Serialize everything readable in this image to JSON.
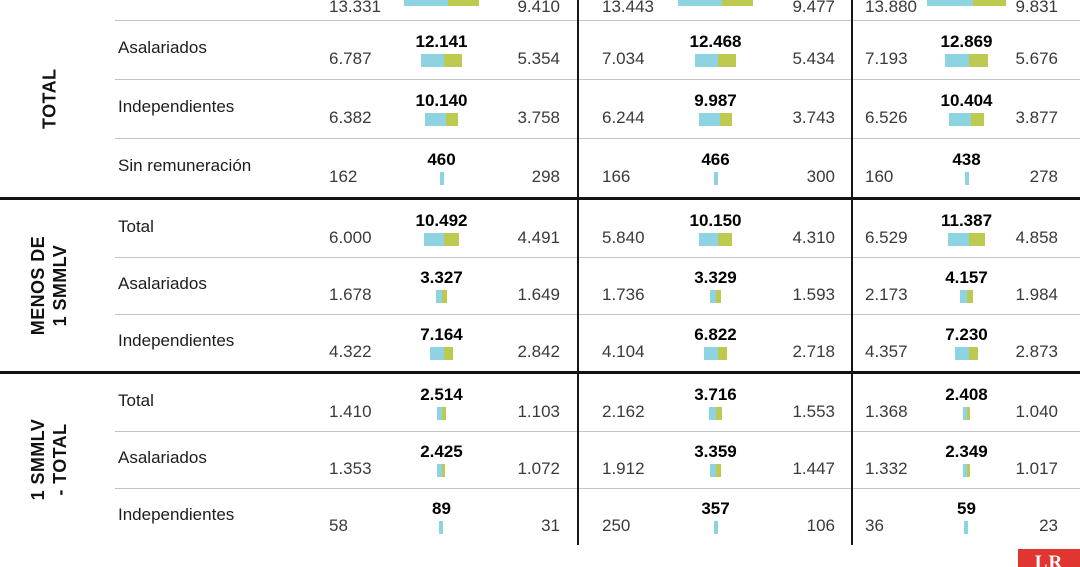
{
  "brand": {
    "logo_text": "LR",
    "logo_color": "#e03530"
  },
  "chart_data": {
    "type": "table",
    "note": "Table with mini horizontal stacked bars per cell. Bold center value = left value + right value; bar blue segment = left value, green segment = right value. Three column groups separated by vertical rules. Top row is partially cut off at the screenshot edge.",
    "bar_colors": {
      "left_segment": "#8ed3e2",
      "right_segment": "#bdc94f"
    },
    "legend_position": "none",
    "groups": [
      {
        "label": "TOTAL",
        "rows": [
          {
            "label": "",
            "cut": true,
            "cells": [
              {
                "left": "13.331",
                "total": "",
                "right": "9.410"
              },
              {
                "left": "13.443",
                "total": "",
                "right": "9.477"
              },
              {
                "left": "13.880",
                "total": "",
                "right": "9.831"
              }
            ]
          },
          {
            "label": "Asalariados",
            "cells": [
              {
                "left": "6.787",
                "total": "12.141",
                "right": "5.354"
              },
              {
                "left": "7.034",
                "total": "12.468",
                "right": "5.434"
              },
              {
                "left": "7.193",
                "total": "12.869",
                "right": "5.676"
              }
            ]
          },
          {
            "label": "Independientes",
            "cells": [
              {
                "left": "6.382",
                "total": "10.140",
                "right": "3.758"
              },
              {
                "left": "6.244",
                "total": "9.987",
                "right": "3.743"
              },
              {
                "left": "6.526",
                "total": "10.404",
                "right": "3.877"
              }
            ]
          },
          {
            "label": "Sin remuneración",
            "cells": [
              {
                "left": "162",
                "total": "460",
                "right": "298"
              },
              {
                "left": "166",
                "total": "466",
                "right": "300"
              },
              {
                "left": "160",
                "total": "438",
                "right": "278"
              }
            ]
          }
        ]
      },
      {
        "label": "MENOS DE\n1 SMMLV",
        "rows": [
          {
            "label": "Total",
            "cells": [
              {
                "left": "6.000",
                "total": "10.492",
                "right": "4.491"
              },
              {
                "left": "5.840",
                "total": "10.150",
                "right": "4.310"
              },
              {
                "left": "6.529",
                "total": "11.387",
                "right": "4.858"
              }
            ]
          },
          {
            "label": "Asalariados",
            "cells": [
              {
                "left": "1.678",
                "total": "3.327",
                "right": "1.649"
              },
              {
                "left": "1.736",
                "total": "3.329",
                "right": "1.593"
              },
              {
                "left": "2.173",
                "total": "4.157",
                "right": "1.984"
              }
            ]
          },
          {
            "label": "Independientes",
            "cells": [
              {
                "left": "4.322",
                "total": "7.164",
                "right": "2.842"
              },
              {
                "left": "4.104",
                "total": "6.822",
                "right": "2.718"
              },
              {
                "left": "4.357",
                "total": "7.230",
                "right": "2.873"
              }
            ]
          }
        ]
      },
      {
        "label": "1 SMMLV\n- TOTAL",
        "rows": [
          {
            "label": "Total",
            "cells": [
              {
                "left": "1.410",
                "total": "2.514",
                "right": "1.103"
              },
              {
                "left": "2.162",
                "total": "3.716",
                "right": "1.553"
              },
              {
                "left": "1.368",
                "total": "2.408",
                "right": "1.040"
              }
            ]
          },
          {
            "label": "Asalariados",
            "cells": [
              {
                "left": "1.353",
                "total": "2.425",
                "right": "1.072"
              },
              {
                "left": "1.912",
                "total": "3.359",
                "right": "1.447"
              },
              {
                "left": "1.332",
                "total": "2.349",
                "right": "1.017"
              }
            ]
          },
          {
            "label": "Independientes",
            "cells": [
              {
                "left": "58",
                "total": "89",
                "right": "31"
              },
              {
                "left": "250",
                "total": "357",
                "right": "106"
              },
              {
                "left": "36",
                "total": "59",
                "right": "23"
              }
            ]
          }
        ]
      }
    ]
  }
}
